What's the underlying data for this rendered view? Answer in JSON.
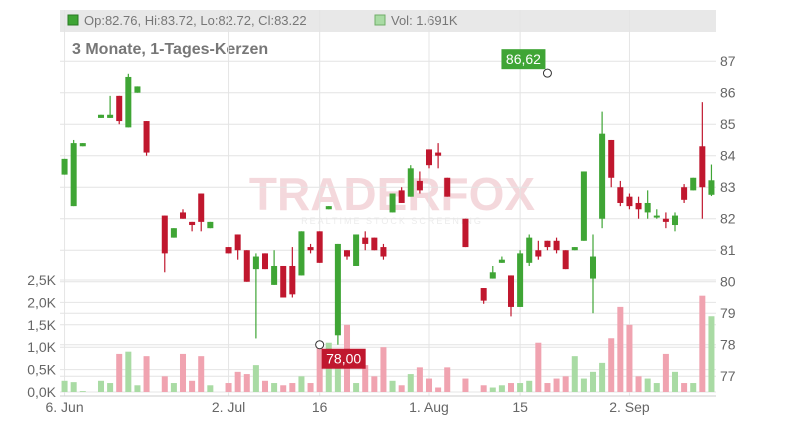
{
  "header": {
    "ohlc_label": "Op:82.76, Hi:83.72, Lo:82.72, Cl:83.22",
    "vol_label": "Vol: 1.691K"
  },
  "colors": {
    "up": "#3fa535",
    "down": "#c0172e",
    "vol_up": "#a9dba4",
    "vol_down": "#f0a3b0",
    "grid": "#e4e4e4",
    "axis_text": "#666666",
    "subtitle": "#777777",
    "header_bg": "#e8e8e8"
  },
  "watermark": {
    "brand": "TRADERFOX",
    "tagline": "REALTIME STOCK SCREENING"
  },
  "chart_data": {
    "type": "candlestick",
    "title": "3 Monate, 1-Tages-Kerzen",
    "price_axis": {
      "min": 76.5,
      "max": 87.8,
      "ticks": [
        77,
        78,
        79,
        80,
        81,
        82,
        83,
        84,
        85,
        86,
        87
      ]
    },
    "volume_axis": {
      "min": 0,
      "max": 2.5,
      "unit": "K",
      "ticks": [
        {
          "v": 0,
          "label": "0,0K"
        },
        {
          "v": 0.5,
          "label": "0,5K"
        },
        {
          "v": 1.0,
          "label": "1,0K"
        },
        {
          "v": 1.5,
          "label": "1,5K"
        },
        {
          "v": 2.0,
          "label": "2,0K"
        },
        {
          "v": 2.5,
          "label": "2,5K"
        }
      ]
    },
    "x_labels": [
      {
        "index": 0,
        "label": "6. Jun"
      },
      {
        "index": 18,
        "label": "2. Jul"
      },
      {
        "index": 28,
        "label": "16"
      },
      {
        "index": 40,
        "label": "1. Aug"
      },
      {
        "index": 50,
        "label": "15"
      },
      {
        "index": 62,
        "label": "2. Sep"
      }
    ],
    "annotations": [
      {
        "label": "86,62",
        "index": 53,
        "price": 86.62,
        "kind": "high"
      },
      {
        "label": "78,00",
        "index": 28,
        "price": 78.0,
        "kind": "low"
      }
    ],
    "candles": [
      {
        "o": 83.4,
        "h": 83.9,
        "l": 83.4,
        "c": 83.9,
        "v": 0.25
      },
      {
        "o": 82.4,
        "h": 84.5,
        "l": 82.4,
        "c": 84.4,
        "v": 0.22
      },
      {
        "o": 84.3,
        "h": 84.4,
        "l": 84.3,
        "c": 84.4,
        "v": 0.02
      },
      {
        "o": null,
        "h": null,
        "l": null,
        "c": null,
        "v": 0.0
      },
      {
        "o": 85.2,
        "h": 85.3,
        "l": 85.2,
        "c": 85.3,
        "v": 0.25
      },
      {
        "o": 85.2,
        "h": 85.9,
        "l": 85.2,
        "c": 85.3,
        "v": 0.2
      },
      {
        "o": 85.9,
        "h": 85.9,
        "l": 85.0,
        "c": 85.1,
        "v": 0.85
      },
      {
        "o": 84.9,
        "h": 86.6,
        "l": 84.9,
        "c": 86.5,
        "v": 0.9
      },
      {
        "o": 86.0,
        "h": 86.2,
        "l": 86.0,
        "c": 86.2,
        "v": 0.15
      },
      {
        "o": 85.1,
        "h": 85.1,
        "l": 84.0,
        "c": 84.1,
        "v": 0.8
      },
      {
        "o": null,
        "h": null,
        "l": null,
        "c": null,
        "v": 0.0
      },
      {
        "o": 82.1,
        "h": 82.1,
        "l": 80.3,
        "c": 80.9,
        "v": 0.35
      },
      {
        "o": 81.4,
        "h": 81.7,
        "l": 81.4,
        "c": 81.7,
        "v": 0.2
      },
      {
        "o": 82.2,
        "h": 82.3,
        "l": 82.0,
        "c": 82.0,
        "v": 0.85
      },
      {
        "o": 81.9,
        "h": 81.9,
        "l": 81.6,
        "c": 81.8,
        "v": 0.25
      },
      {
        "o": 82.8,
        "h": 82.8,
        "l": 81.6,
        "c": 81.9,
        "v": 0.8
      },
      {
        "o": 81.7,
        "h": 81.9,
        "l": 81.7,
        "c": 81.9,
        "v": 0.15
      },
      {
        "o": null,
        "h": null,
        "l": null,
        "c": null,
        "v": 0.0
      },
      {
        "o": 81.1,
        "h": 81.1,
        "l": 80.9,
        "c": 80.9,
        "v": 0.2
      },
      {
        "o": 81.5,
        "h": 81.5,
        "l": 80.7,
        "c": 81.0,
        "v": 0.45
      },
      {
        "o": 81.0,
        "h": 81.0,
        "l": 80.0,
        "c": 80.0,
        "v": 0.4
      },
      {
        "o": 80.4,
        "h": 80.9,
        "l": 78.2,
        "c": 80.8,
        "v": 0.6
      },
      {
        "o": 80.9,
        "h": 80.9,
        "l": 80.4,
        "c": 80.4,
        "v": 0.25
      },
      {
        "o": 79.9,
        "h": 81.0,
        "l": 79.9,
        "c": 80.5,
        "v": 0.2
      },
      {
        "o": 80.5,
        "h": 80.5,
        "l": 79.5,
        "c": 79.5,
        "v": 0.15
      },
      {
        "o": 80.5,
        "h": 81.1,
        "l": 79.5,
        "c": 79.6,
        "v": 0.2
      },
      {
        "o": 80.2,
        "h": 81.6,
        "l": 80.2,
        "c": 81.6,
        "v": 0.35
      },
      {
        "o": 81.1,
        "h": 81.2,
        "l": 80.9,
        "c": 81.0,
        "v": 0.2
      },
      {
        "o": 81.6,
        "h": 81.6,
        "l": 80.6,
        "c": 80.6,
        "v": 1.1
      },
      {
        "o": 82.3,
        "h": 82.4,
        "l": 82.3,
        "c": 82.4,
        "v": 1.1
      },
      {
        "o": 78.3,
        "h": 81.2,
        "l": 78.0,
        "c": 81.2,
        "v": 0.7
      },
      {
        "o": 81.0,
        "h": 81.0,
        "l": 80.7,
        "c": 80.8,
        "v": 1.5
      },
      {
        "o": 80.5,
        "h": 81.5,
        "l": 80.5,
        "c": 81.5,
        "v": 0.2
      },
      {
        "o": 81.4,
        "h": 81.6,
        "l": 81.0,
        "c": 81.2,
        "v": 0.6
      },
      {
        "o": 81.4,
        "h": 81.4,
        "l": 81.0,
        "c": 81.0,
        "v": 0.35
      },
      {
        "o": 81.1,
        "h": 81.2,
        "l": 80.7,
        "c": 80.8,
        "v": 1.0
      },
      {
        "o": 82.2,
        "h": 82.8,
        "l": 82.2,
        "c": 82.8,
        "v": 0.25
      },
      {
        "o": 82.9,
        "h": 83.0,
        "l": 82.5,
        "c": 82.5,
        "v": 0.15
      },
      {
        "o": 82.7,
        "h": 83.7,
        "l": 82.7,
        "c": 83.6,
        "v": 0.4
      },
      {
        "o": 83.2,
        "h": 83.5,
        "l": 82.8,
        "c": 82.9,
        "v": 0.55
      },
      {
        "o": 84.2,
        "h": 84.2,
        "l": 83.6,
        "c": 83.7,
        "v": 0.3
      },
      {
        "o": 84.1,
        "h": 84.4,
        "l": 83.6,
        "c": 84.0,
        "v": 0.1
      },
      {
        "o": 83.3,
        "h": 83.3,
        "l": 82.7,
        "c": 82.7,
        "v": 0.55
      },
      {
        "o": null,
        "h": null,
        "l": null,
        "c": null,
        "v": 0.0
      },
      {
        "o": 82.0,
        "h": 82.0,
        "l": 81.1,
        "c": 81.1,
        "v": 0.3
      },
      {
        "o": null,
        "h": null,
        "l": null,
        "c": null,
        "v": 0.0
      },
      {
        "o": 79.8,
        "h": 79.8,
        "l": 79.3,
        "c": 79.4,
        "v": 0.15
      },
      {
        "o": 80.1,
        "h": 80.5,
        "l": 80.1,
        "c": 80.3,
        "v": 0.1
      },
      {
        "o": 80.6,
        "h": 80.8,
        "l": 80.6,
        "c": 80.7,
        "v": 0.15
      },
      {
        "o": 80.2,
        "h": 80.2,
        "l": 78.9,
        "c": 79.2,
        "v": 0.2
      },
      {
        "o": 79.2,
        "h": 81.0,
        "l": 79.2,
        "c": 80.9,
        "v": 0.2
      },
      {
        "o": 80.6,
        "h": 81.5,
        "l": 80.5,
        "c": 81.4,
        "v": 0.25
      },
      {
        "o": 81.0,
        "h": 81.3,
        "l": 80.7,
        "c": 80.8,
        "v": 1.1
      },
      {
        "o": 81.3,
        "h": 81.3,
        "l": 81.0,
        "c": 81.1,
        "v": 0.2
      },
      {
        "o": 81.3,
        "h": 81.4,
        "l": 80.9,
        "c": 81.0,
        "v": 0.3
      },
      {
        "o": 81.0,
        "h": 81.0,
        "l": 80.4,
        "c": 80.4,
        "v": 0.35
      },
      {
        "o": 81.0,
        "h": 81.1,
        "l": 81.0,
        "c": 81.1,
        "v": 0.8
      },
      {
        "o": 81.3,
        "h": 83.5,
        "l": 81.3,
        "c": 83.5,
        "v": 0.3
      },
      {
        "o": 80.1,
        "h": 81.5,
        "l": 79.0,
        "c": 80.8,
        "v": 0.45
      },
      {
        "o": 82.0,
        "h": 85.4,
        "l": 81.7,
        "c": 84.7,
        "v": 0.65
      },
      {
        "o": 84.5,
        "h": 84.5,
        "l": 83.0,
        "c": 83.3,
        "v": 1.2
      },
      {
        "o": 83.0,
        "h": 83.2,
        "l": 82.4,
        "c": 82.5,
        "v": 1.9
      },
      {
        "o": 82.7,
        "h": 82.8,
        "l": 82.3,
        "c": 82.4,
        "v": 1.5
      },
      {
        "o": 82.5,
        "h": 82.7,
        "l": 82.0,
        "c": 82.3,
        "v": 0.35
      },
      {
        "o": 82.2,
        "h": 82.9,
        "l": 82.0,
        "c": 82.5,
        "v": 0.3
      },
      {
        "o": 82.1,
        "h": 82.3,
        "l": 82.0,
        "c": 82.1,
        "v": 0.2
      },
      {
        "o": 82.0,
        "h": 82.2,
        "l": 81.7,
        "c": 81.9,
        "v": 0.85
      },
      {
        "o": 81.8,
        "h": 82.2,
        "l": 81.6,
        "c": 82.1,
        "v": 0.45
      },
      {
        "o": 83.0,
        "h": 83.1,
        "l": 82.5,
        "c": 82.6,
        "v": 0.2
      },
      {
        "o": 82.9,
        "h": 83.3,
        "l": 82.9,
        "c": 83.3,
        "v": 0.2
      },
      {
        "o": 84.3,
        "h": 85.7,
        "l": 82.0,
        "c": 83.0,
        "v": 2.15
      },
      {
        "o": 82.76,
        "h": 83.72,
        "l": 82.72,
        "c": 83.22,
        "v": 1.691
      }
    ]
  }
}
